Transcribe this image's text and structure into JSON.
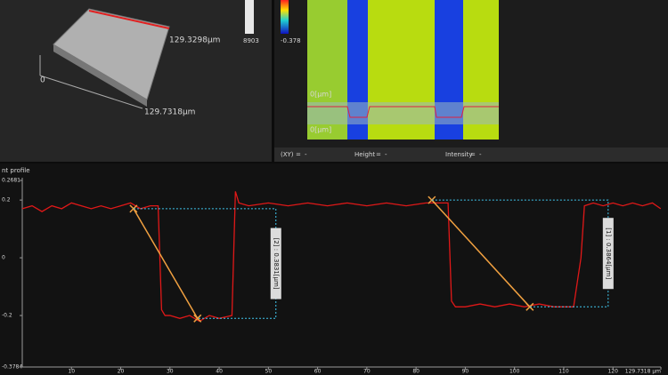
{
  "view3d": {
    "y_length": "129.3298µm",
    "origin": "0",
    "x_length": "129.7318µm"
  },
  "height_scale": {
    "max": "8903"
  },
  "intensity_scale": {
    "min": "-0.378"
  },
  "image_labels": [
    "0[µm]",
    "0[µm]"
  ],
  "status_bar": [
    {
      "label": "(XY)",
      "eq": "=",
      "value": "-"
    },
    {
      "label": "Height",
      "eq": "=",
      "value": "-"
    },
    {
      "label": "Intensity",
      "eq": "=",
      "value": "-"
    }
  ],
  "chart_data": {
    "type": "line",
    "title": "nt profile",
    "color": "#e01818",
    "x": [
      0,
      2,
      4,
      6,
      8,
      10,
      12,
      14,
      16,
      18,
      20,
      22,
      24,
      26,
      27.6,
      28.3,
      29,
      30,
      32,
      34,
      36,
      38,
      40,
      42.6,
      43.3,
      44,
      46,
      50,
      54,
      58,
      62,
      66,
      70,
      74,
      78,
      82,
      86.5,
      87.2,
      88,
      90,
      93,
      96,
      99,
      102,
      105,
      108,
      112,
      113.5,
      114.2,
      116,
      118,
      120,
      122,
      124,
      126,
      128,
      129.7
    ],
    "values": [
      0.17,
      0.18,
      0.16,
      0.18,
      0.17,
      0.19,
      0.18,
      0.17,
      0.18,
      0.17,
      0.18,
      0.19,
      0.17,
      0.18,
      0.18,
      -0.18,
      -0.2,
      -0.2,
      -0.21,
      -0.2,
      -0.22,
      -0.2,
      -0.21,
      -0.2,
      0.23,
      0.19,
      0.18,
      0.19,
      0.18,
      0.19,
      0.18,
      0.19,
      0.18,
      0.19,
      0.18,
      0.19,
      0.19,
      -0.15,
      -0.17,
      -0.17,
      -0.16,
      -0.17,
      -0.16,
      -0.17,
      -0.16,
      -0.17,
      -0.17,
      0.0,
      0.18,
      0.19,
      0.18,
      0.19,
      0.18,
      0.19,
      0.18,
      0.19,
      0.17
    ],
    "xlim": [
      0,
      129.7318
    ],
    "xticks": [
      10,
      20,
      30,
      40,
      50,
      60,
      70,
      80,
      90,
      100,
      110,
      120,
      {
        "value": 129.7318,
        "label": "129.7318 µm"
      }
    ],
    "ylim": [
      -0.3784,
      0.2681
    ],
    "yticks": [
      0.2681,
      0.2,
      0,
      -0.2,
      -0.3784
    ],
    "measurements": [
      {
        "label": "[2] : 0.3831[µm]",
        "x": [
          22.6,
          35.6
        ],
        "values": [
          0.17,
          -0.21
        ]
      },
      {
        "label": "[1] : 0.3864[µm]",
        "x": [
          83.2,
          103.1
        ],
        "values": [
          0.2,
          -0.17
        ]
      }
    ]
  }
}
